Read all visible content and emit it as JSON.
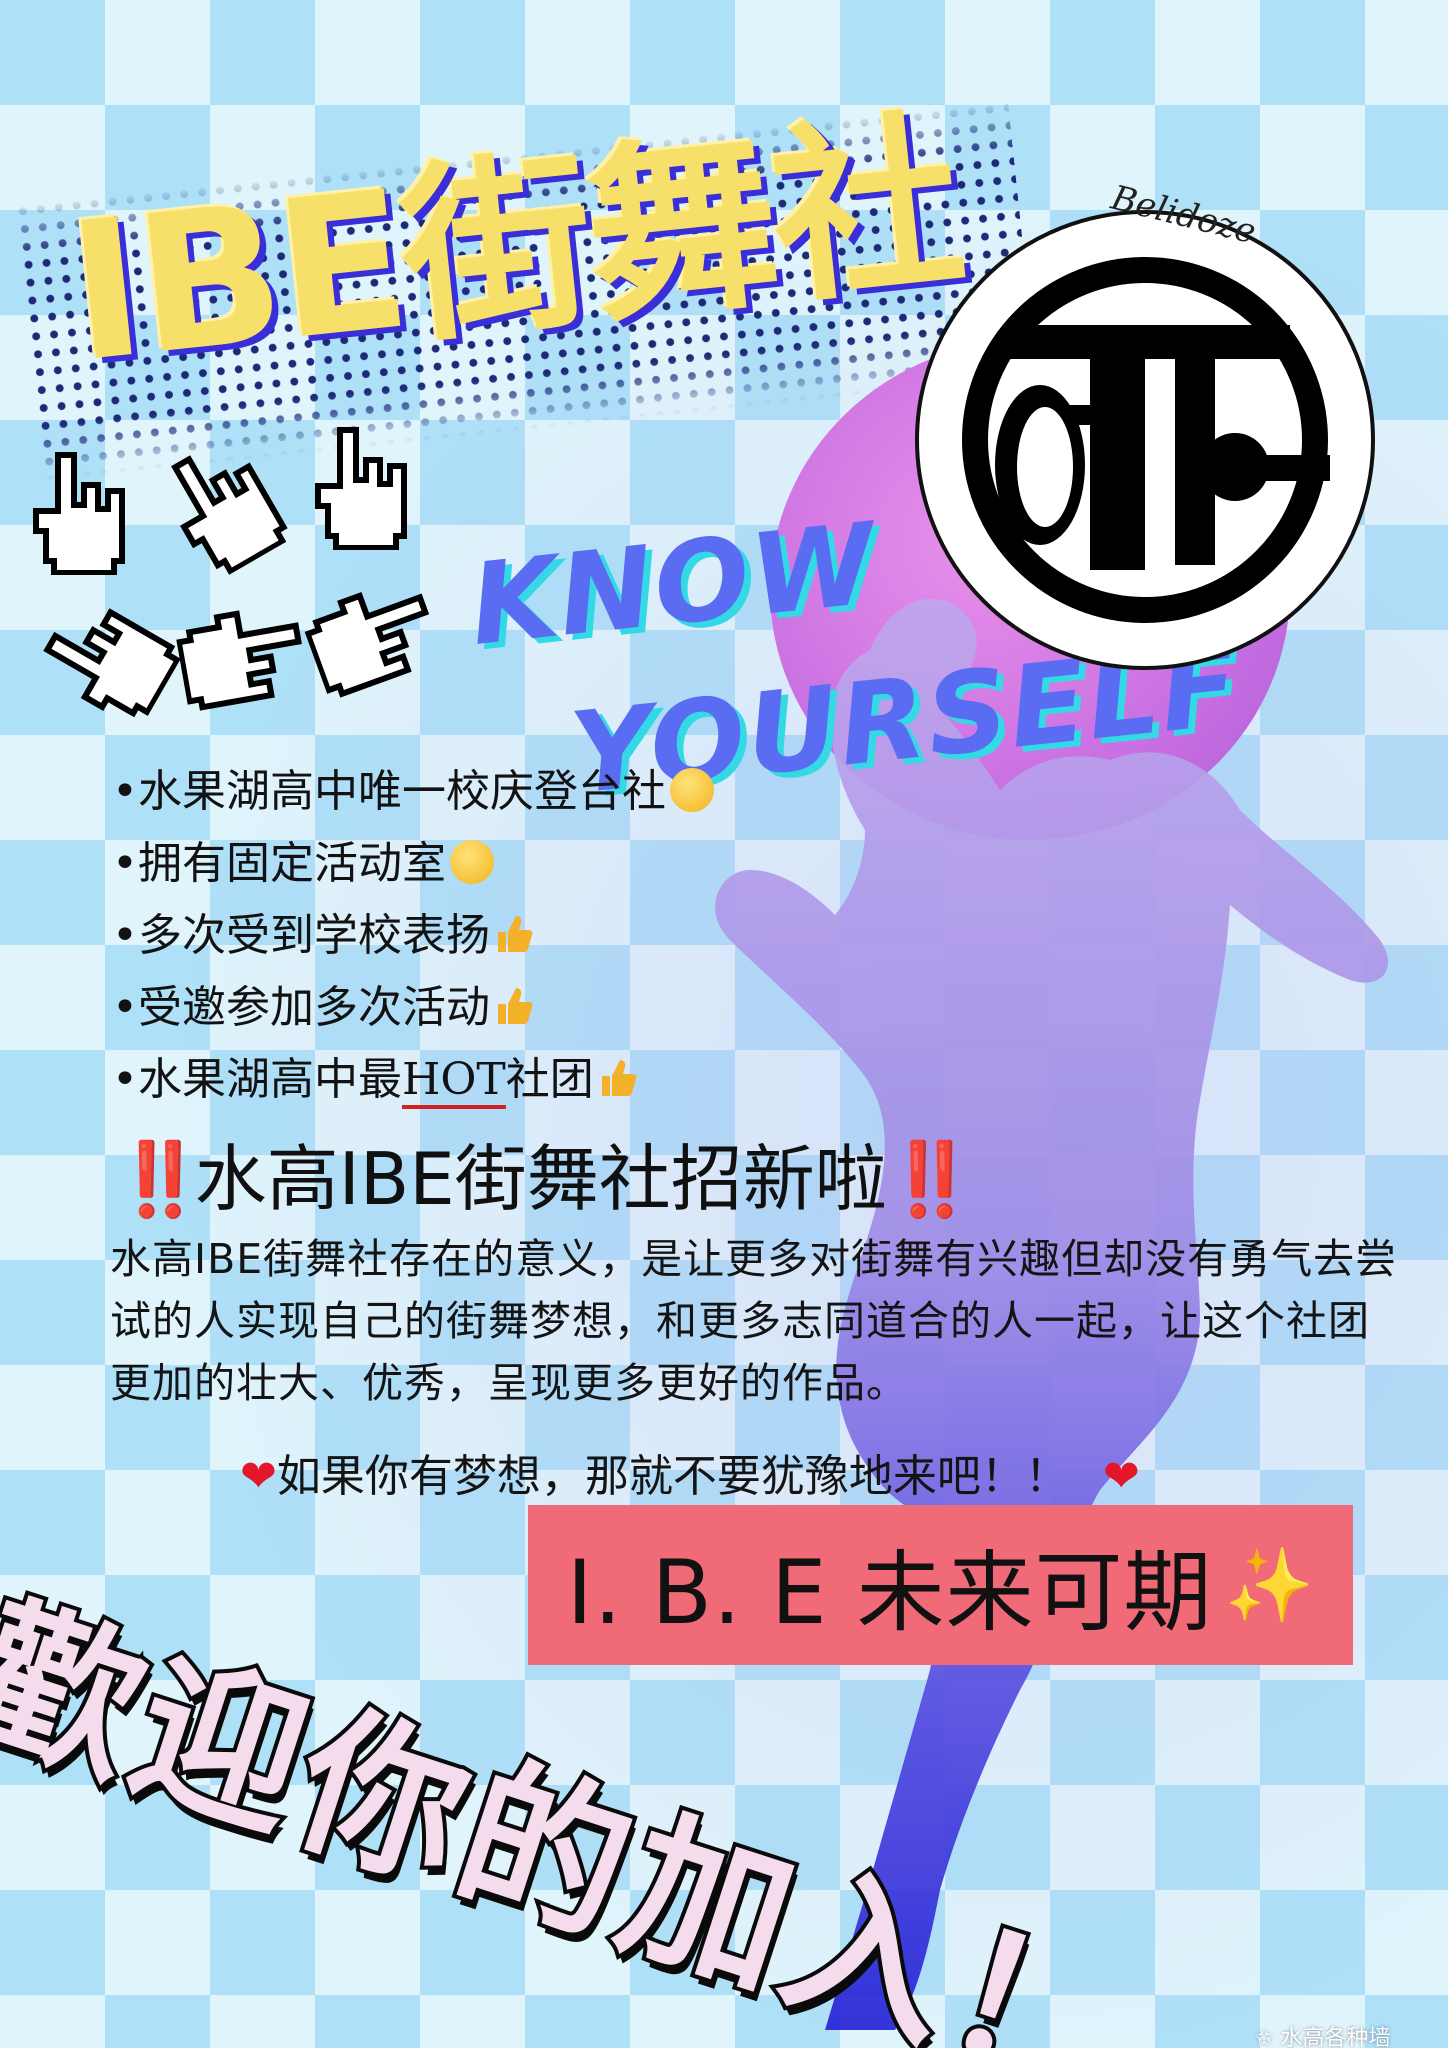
{
  "poster": {
    "title": "IBE街舞社",
    "logo_script": "Belidoze",
    "know": "KNOW",
    "yourself": "YOURSELF",
    "bullets": [
      {
        "text": "•水果湖高中唯一校庆登台社",
        "emoji": "face-emoji"
      },
      {
        "text": "•拥有固定活动室",
        "emoji": "star-eyes-emoji"
      },
      {
        "text": "•多次受到学校表扬",
        "emoji": "thumbs-up-emoji"
      },
      {
        "text": "•受邀参加多次活动",
        "emoji": "thumbs-up-emoji"
      }
    ],
    "bullet5_prefix": "•水果湖高中最",
    "bullet5_hot": "HOT",
    "bullet5_suffix": "社团",
    "headline_bang": "‼️",
    "headline": "水高IBE街舞社招新啦",
    "description": "水高IBE街舞社存在的意义，是让更多对街舞有兴趣但却没有勇气去尝试的人实现自己的街舞梦想，和更多志同道合的人一起，让这个社团更加的壮大、优秀，呈现更多更好的作品。",
    "dream": "如果你有梦想，那就不要犹豫地来吧！！",
    "heart": "❤",
    "ibe_future": "I. B. E  未来可期",
    "sparkle": "✨",
    "welcome": "歡迎你的加入！",
    "watermark": "水高各种墙",
    "colors": {
      "title_yellow": "#f7e06a",
      "title_shadow": "#3a2ed8",
      "know_blue": "#5a6cf2",
      "know_cyan": "#33d9e5",
      "box_pink": "#f06a78",
      "bang_red": "#e0141e",
      "silhouette_top": "#b39ae8",
      "silhouette_bottom": "#2d2ed8"
    }
  }
}
